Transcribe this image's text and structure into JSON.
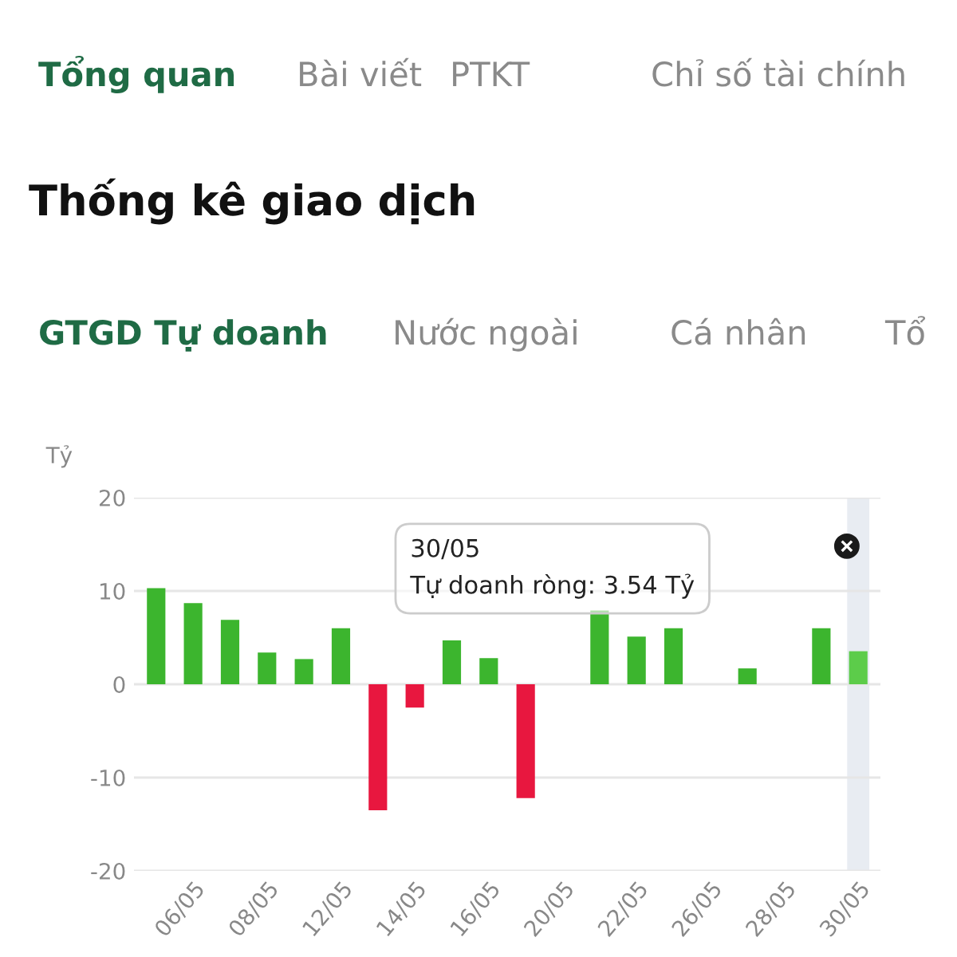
{
  "chart_data": {
    "type": "bar",
    "title": "Thống kê giao dịch",
    "subtitle": "GTGD Tự doanh",
    "ylabel": "Tỷ",
    "annotations": [
      "Tổng quan",
      "Bài viết",
      "PTKT",
      "Chỉ số tài chính",
      "Nước ngoài",
      "Cá nhân",
      "Tổ",
      "30/05\nTự doanh ròng: 3.54 Tỷ"
    ],
    "categories": [
      null,
      "06/05",
      null,
      "08/05",
      null,
      "12/05",
      null,
      "14/05",
      null,
      "16/05",
      null,
      "20/05",
      null,
      "22/05",
      null,
      "26/05",
      null,
      "28/05",
      null,
      "30/05"
    ],
    "values": [
      10.3,
      8.7,
      6.9,
      3.4,
      2.7,
      6.0,
      -13.5,
      -2.5,
      4.7,
      2.8,
      -12.2,
      null,
      7.9,
      5.1,
      6.0,
      null,
      1.7,
      null,
      6.0,
      3.54
    ],
    "colors": [
      "#3cb52e",
      "#3cb52e",
      "#3cb52e",
      "#3cb52e",
      "#3cb52e",
      "#3cb52e",
      "#e8173f",
      "#e8173f",
      "#3cb52e",
      "#3cb52e",
      "#e8173f",
      "#3cb52e",
      "#3cb52e",
      "#3cb52e",
      "#3cb52e",
      "#3cb52e",
      "#3cb52e",
      "#3cb52e",
      "#3cb52e",
      "#5ccc4a"
    ],
    "bands": [
      {
        "axis": "x",
        "from": "30/05",
        "to": "30/05",
        "color": "#e8ecf2"
      }
    ],
    "ylim": [
      -20,
      20
    ],
    "yticks": [
      -20,
      -10,
      0,
      10,
      20
    ],
    "grid": "y",
    "legend": false
  }
}
